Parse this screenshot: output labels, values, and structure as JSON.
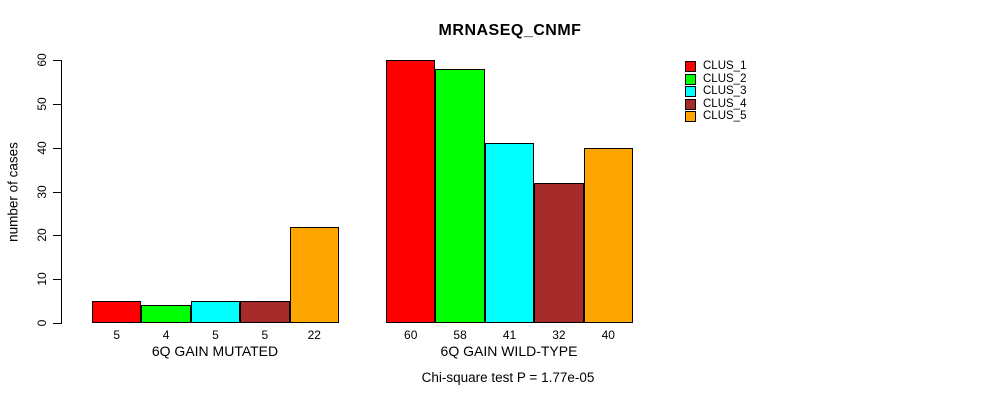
{
  "title": "MRNASEQ_CNMF",
  "ylabel": "number of cases",
  "caption": "Chi-square test P = 1.77e-05",
  "chart_data": {
    "type": "bar",
    "title": "MRNASEQ_CNMF",
    "xlabel": "",
    "ylabel": "number of cases",
    "categories": [
      "6Q GAIN MUTATED",
      "6Q GAIN WILD-TYPE"
    ],
    "series": [
      {
        "name": "CLUS_1",
        "color": "#FF0000",
        "values": [
          5,
          60
        ]
      },
      {
        "name": "CLUS_2",
        "color": "#00FF00",
        "values": [
          4,
          58
        ]
      },
      {
        "name": "CLUS_3",
        "color": "#00FFFF",
        "values": [
          5,
          41
        ]
      },
      {
        "name": "CLUS_4",
        "color": "#A52A2A",
        "values": [
          5,
          32
        ]
      },
      {
        "name": "CLUS_5",
        "color": "#FFA500",
        "values": [
          22,
          40
        ]
      }
    ],
    "bar_value_labels": {
      "6Q GAIN MUTATED": [
        5,
        4,
        5,
        5,
        22
      ],
      "6Q GAIN WILD-TYPE": [
        60,
        58,
        41,
        32,
        40
      ]
    },
    "ylim": [
      0,
      60
    ],
    "yticks": [
      0,
      10,
      20,
      30,
      40,
      50,
      60
    ],
    "grid": false,
    "legend_position": "right",
    "annotation": "Chi-square test P = 1.77e-05",
    "bar_border_color": "#000000",
    "background_color": "#FFFFFF"
  }
}
